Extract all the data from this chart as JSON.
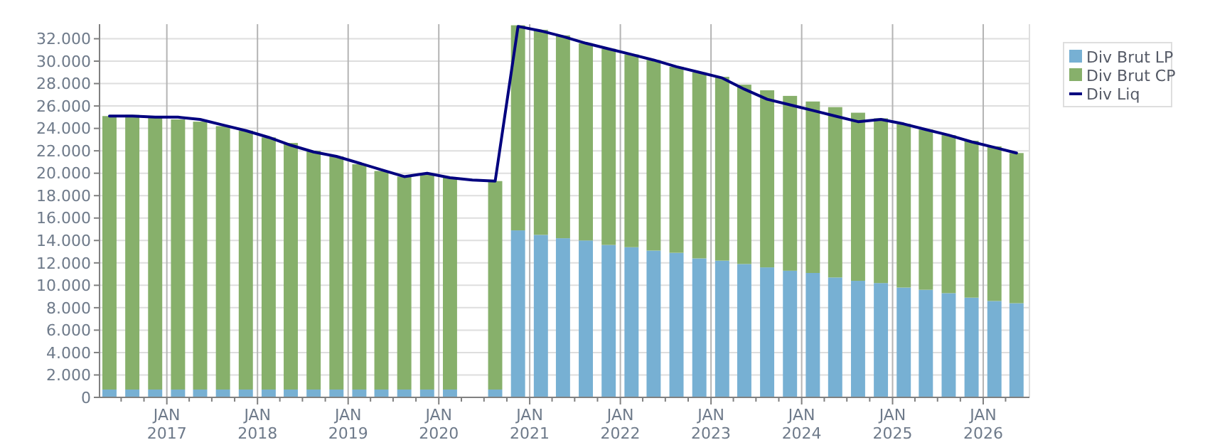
{
  "chart_data": {
    "type": "bar",
    "stacked": true,
    "grid": true,
    "legend": "top right",
    "x": [
      "2016-05-15",
      "2016-08-15",
      "2016-11-15",
      "2017-02-15",
      "2017-05-15",
      "2017-08-15",
      "2017-11-15",
      "2018-02-15",
      "2018-05-15",
      "2018-08-15",
      "2018-11-15",
      "2019-02-15",
      "2019-05-15",
      "2019-08-15",
      "2019-11-15",
      "2020-02-15",
      "2020-05-15",
      "2020-08-15",
      "2020-11-15",
      "2021-02-15",
      "2021-05-15",
      "2021-08-15",
      "2021-11-15",
      "2022-02-15",
      "2022-05-15",
      "2022-08-15",
      "2022-11-15",
      "2023-02-15",
      "2023-05-15",
      "2023-08-15",
      "2023-11-15",
      "2024-02-15",
      "2024-05-15",
      "2024-08-15",
      "2024-11-15",
      "2025-02-15",
      "2025-05-15",
      "2025-08-15",
      "2025-11-15",
      "2026-02-15",
      "2026-05-15"
    ],
    "series": [
      {
        "name": "Div Brut LP",
        "color": "#77b0d3",
        "values": [
          700,
          700,
          700,
          700,
          700,
          700,
          700,
          700,
          700,
          700,
          700,
          700,
          700,
          700,
          700,
          700,
          null,
          700,
          14900,
          14500,
          14200,
          14000,
          13600,
          13400,
          13100,
          12900,
          12400,
          12200,
          11900,
          11600,
          11300,
          11100,
          10700,
          10400,
          10200,
          9800,
          9600,
          9300,
          8900,
          8600,
          8400
        ]
      },
      {
        "name": "Div Brut CP",
        "color": "#87b06b",
        "values": [
          24400,
          24500,
          24300,
          24100,
          23900,
          23500,
          23100,
          22500,
          22000,
          21300,
          20800,
          20100,
          19500,
          19000,
          19200,
          18900,
          null,
          18600,
          18300,
          18300,
          18100,
          17600,
          17500,
          17200,
          17000,
          16600,
          16600,
          16400,
          16000,
          15800,
          15600,
          15300,
          15200,
          15000,
          14700,
          14600,
          14300,
          14100,
          14000,
          13800,
          13400
        ]
      },
      {
        "name": "Div Liq",
        "type": "line",
        "color": "#00007f",
        "values": [
          25100,
          25100,
          25000,
          25000,
          24800,
          24300,
          23800,
          23200,
          22500,
          21900,
          21500,
          20900,
          20300,
          19700,
          20000,
          19600,
          19400,
          19300,
          33100,
          32700,
          32200,
          31600,
          31100,
          30600,
          30100,
          29500,
          29000,
          28500,
          27500,
          26600,
          26100,
          25600,
          25100,
          24600,
          24800,
          24400,
          23900,
          23400,
          22800,
          22300,
          21800
        ]
      }
    ],
    "xlim": [
      "2016-04-05",
      "2026-07-06"
    ],
    "xticks": [
      {
        "value": "2016-07-01",
        "label": null
      },
      {
        "value": "2016-10-01",
        "label": null
      },
      {
        "value": "2017-01-01",
        "label": "JAN 2017"
      },
      {
        "value": "2017-04-01",
        "label": null
      },
      {
        "value": "2017-07-01",
        "label": null
      },
      {
        "value": "2017-10-01",
        "label": null
      },
      {
        "value": "2018-01-01",
        "label": "JAN 2018"
      },
      {
        "value": "2018-04-01",
        "label": null
      },
      {
        "value": "2018-07-01",
        "label": null
      },
      {
        "value": "2018-10-01",
        "label": null
      },
      {
        "value": "2019-01-01",
        "label": "JAN 2019"
      },
      {
        "value": "2019-04-01",
        "label": null
      },
      {
        "value": "2019-07-01",
        "label": null
      },
      {
        "value": "2019-10-01",
        "label": null
      },
      {
        "value": "2020-01-01",
        "label": "JAN 2020"
      },
      {
        "value": "2020-04-01",
        "label": null
      },
      {
        "value": "2020-07-01",
        "label": null
      },
      {
        "value": "2020-10-01",
        "label": null
      },
      {
        "value": "2021-01-01",
        "label": "JAN 2021"
      },
      {
        "value": "2021-04-01",
        "label": null
      },
      {
        "value": "2021-07-01",
        "label": null
      },
      {
        "value": "2021-10-01",
        "label": null
      },
      {
        "value": "2022-01-01",
        "label": "JAN 2022"
      },
      {
        "value": "2022-04-01",
        "label": null
      },
      {
        "value": "2022-07-01",
        "label": null
      },
      {
        "value": "2022-10-01",
        "label": null
      },
      {
        "value": "2023-01-01",
        "label": "JAN 2023"
      },
      {
        "value": "2023-04-01",
        "label": null
      },
      {
        "value": "2023-07-01",
        "label": null
      },
      {
        "value": "2023-10-01",
        "label": null
      },
      {
        "value": "2024-01-01",
        "label": "JAN 2024"
      },
      {
        "value": "2024-04-01",
        "label": null
      },
      {
        "value": "2024-07-01",
        "label": null
      },
      {
        "value": "2024-10-01",
        "label": null
      },
      {
        "value": "2025-01-01",
        "label": "JAN 2025"
      },
      {
        "value": "2025-04-01",
        "label": null
      },
      {
        "value": "2025-07-01",
        "label": null
      },
      {
        "value": "2025-10-01",
        "label": null
      },
      {
        "value": "2026-01-01",
        "label": "JAN 2026"
      },
      {
        "value": "2026-04-01",
        "label": null
      }
    ],
    "ylim": [
      0,
      33300
    ],
    "yticks": [
      0,
      {
        "value": 2000,
        "label": "2.000"
      },
      {
        "value": 4000,
        "label": "4.000"
      },
      {
        "value": 6000,
        "label": "6.000"
      },
      {
        "value": 8000,
        "label": "8.000"
      },
      {
        "value": 10000,
        "label": "10.000"
      },
      {
        "value": 12000,
        "label": "12.000"
      },
      {
        "value": 14000,
        "label": "14.000"
      },
      {
        "value": 16000,
        "label": "16.000"
      },
      {
        "value": 18000,
        "label": "18.000"
      },
      {
        "value": 20000,
        "label": "20.000"
      },
      {
        "value": 22000,
        "label": "22.000"
      },
      {
        "value": 24000,
        "label": "24.000"
      },
      {
        "value": 26000,
        "label": "26.000"
      },
      {
        "value": 28000,
        "label": "28.000"
      },
      {
        "value": 30000,
        "label": "30.000"
      },
      {
        "value": 32000,
        "label": "32.000"
      }
    ]
  }
}
